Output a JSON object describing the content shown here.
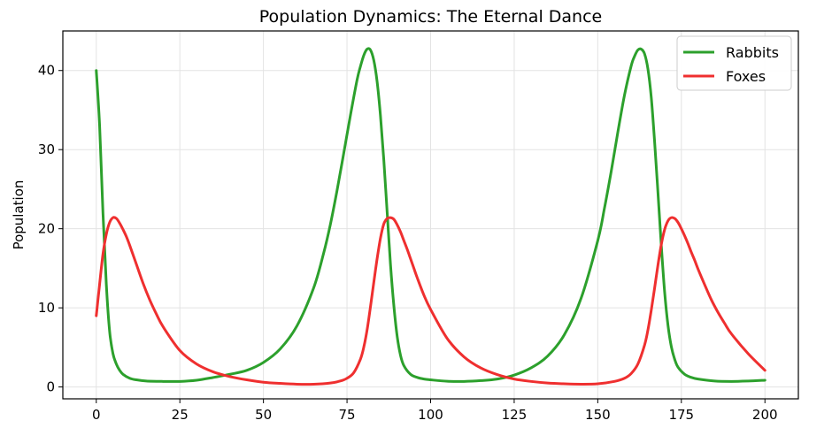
{
  "chart_data": {
    "type": "line",
    "title": "Population Dynamics: The Eternal Dance",
    "xlabel": "",
    "ylabel": "Population",
    "xlim": [
      -10,
      210
    ],
    "ylim": [
      -1.5,
      45
    ],
    "xticks": [
      0,
      25,
      50,
      75,
      100,
      125,
      150,
      175,
      200
    ],
    "yticks": [
      0,
      10,
      20,
      30,
      40
    ],
    "grid": true,
    "legend": "top-right",
    "series": [
      {
        "name": "Rabbits",
        "color": "#2ca02c",
        "x": [
          0,
          1,
          2,
          3,
          4,
          5,
          6,
          7,
          8,
          10,
          12,
          15,
          20,
          25,
          30,
          35,
          40,
          45,
          50,
          55,
          60,
          65,
          68,
          70,
          72,
          74,
          76,
          78,
          79,
          80,
          81,
          82,
          83,
          84,
          85,
          86,
          87,
          88,
          89,
          90,
          91,
          92,
          94,
          96,
          98,
          100,
          105,
          110,
          115,
          120,
          125,
          130,
          135,
          140,
          145,
          150,
          152,
          154,
          156,
          158,
          160,
          161,
          162,
          163,
          164,
          165,
          166,
          167,
          168,
          169,
          170,
          171,
          172,
          173,
          174,
          176,
          178,
          180,
          185,
          190,
          195,
          200
        ],
        "y": [
          40,
          33,
          22,
          13,
          7,
          4.2,
          2.9,
          2.1,
          1.6,
          1.1,
          0.9,
          0.75,
          0.7,
          0.7,
          0.85,
          1.2,
          1.6,
          2.1,
          3.1,
          4.8,
          7.7,
          12.5,
          16.9,
          20.5,
          24.8,
          29.5,
          34.3,
          38.8,
          40.5,
          41.9,
          42.7,
          42.6,
          41.3,
          38.6,
          34.3,
          28.7,
          22.1,
          15.5,
          10.3,
          6.4,
          4.0,
          2.7,
          1.6,
          1.2,
          1.0,
          0.9,
          0.72,
          0.7,
          0.8,
          1.0,
          1.5,
          2.4,
          3.9,
          6.6,
          11.2,
          18.5,
          22.6,
          27.2,
          32.2,
          36.9,
          40.6,
          41.8,
          42.6,
          42.7,
          42.1,
          40.2,
          36.6,
          31.0,
          24.6,
          17.9,
          12.0,
          7.8,
          5.1,
          3.5,
          2.5,
          1.6,
          1.2,
          1.0,
          0.75,
          0.7,
          0.75,
          0.85
        ]
      },
      {
        "name": "Foxes",
        "color": "#ef2f2f",
        "x": [
          0,
          1,
          2,
          3,
          4,
          5,
          6,
          7,
          8,
          9,
          10,
          12,
          14,
          16,
          18,
          20,
          25,
          30,
          35,
          40,
          45,
          50,
          55,
          60,
          65,
          70,
          73,
          75,
          77,
          79,
          80,
          81,
          82,
          83,
          84,
          85,
          86,
          87,
          88,
          89,
          90,
          91,
          92,
          93,
          94,
          95,
          96,
          98,
          100,
          105,
          110,
          115,
          120,
          125,
          130,
          135,
          140,
          145,
          150,
          155,
          158,
          160,
          162,
          164,
          165,
          166,
          167,
          168,
          169,
          170,
          171,
          172,
          173,
          174,
          175,
          176,
          177,
          178,
          179,
          180,
          182,
          184,
          186,
          188,
          190,
          195,
          200
        ],
        "y": [
          9,
          13,
          16.8,
          19.3,
          20.8,
          21.4,
          21.3,
          20.7,
          19.9,
          19.0,
          17.9,
          15.5,
          13.1,
          11.0,
          9.2,
          7.6,
          4.6,
          2.9,
          1.9,
          1.3,
          0.9,
          0.6,
          0.45,
          0.35,
          0.35,
          0.5,
          0.75,
          1.1,
          1.8,
          3.5,
          5.0,
          7.2,
          10.1,
          13.2,
          16.2,
          18.8,
          20.6,
          21.3,
          21.4,
          21.2,
          20.5,
          19.6,
          18.5,
          17.4,
          16.2,
          15.0,
          13.8,
          11.6,
          9.8,
          6.1,
          3.8,
          2.4,
          1.55,
          1.0,
          0.7,
          0.5,
          0.4,
          0.35,
          0.4,
          0.7,
          1.1,
          1.7,
          2.9,
          5.3,
          7.2,
          9.7,
          12.5,
          15.4,
          18.0,
          19.9,
          21.0,
          21.4,
          21.3,
          20.8,
          20.0,
          19.1,
          18.1,
          17.0,
          16.0,
          14.9,
          12.9,
          11.0,
          9.4,
          8.0,
          6.7,
          4.2,
          2.1
        ]
      }
    ]
  }
}
